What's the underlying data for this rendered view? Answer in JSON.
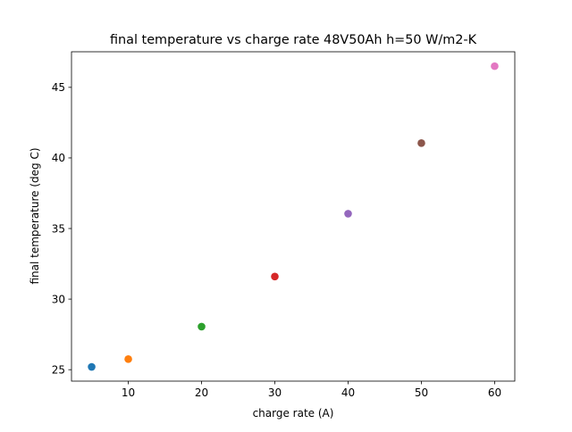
{
  "chart_data": {
    "type": "scatter",
    "title": "final temperature vs charge rate 48V50Ah h=50 W/m2-K",
    "xlabel": "charge rate (A)",
    "ylabel": "final temperature (deg C)",
    "xlim": [
      2.25,
      62.75
    ],
    "ylim": [
      24.19,
      47.52
    ],
    "xticks": [
      10,
      20,
      30,
      40,
      50,
      60
    ],
    "yticks": [
      25,
      30,
      35,
      40,
      45
    ],
    "xtick_labels": [
      "10",
      "20",
      "30",
      "40",
      "50",
      "60"
    ],
    "ytick_labels": [
      "25",
      "30",
      "35",
      "40",
      "45"
    ],
    "grid": false,
    "points": [
      {
        "x": 5,
        "y": 25.2,
        "color": "#1f77b4"
      },
      {
        "x": 10,
        "y": 25.75,
        "color": "#ff7f0e"
      },
      {
        "x": 20,
        "y": 28.05,
        "color": "#2ca02c"
      },
      {
        "x": 30,
        "y": 31.6,
        "color": "#d62728"
      },
      {
        "x": 40,
        "y": 36.05,
        "color": "#9467bd"
      },
      {
        "x": 50,
        "y": 41.05,
        "color": "#8c564b"
      },
      {
        "x": 60,
        "y": 46.5,
        "color": "#e377c2"
      }
    ]
  }
}
